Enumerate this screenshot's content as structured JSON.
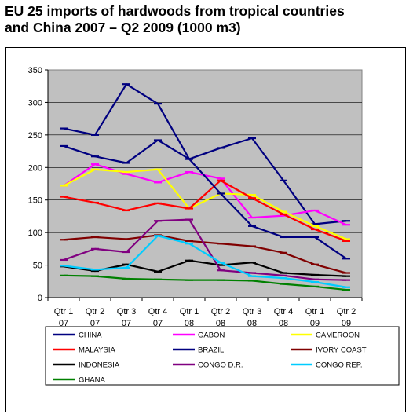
{
  "title": {
    "line1": "EU 25 imports of hardwoods from tropical countries",
    "line2": "and China 2007 – Q2 2009 (1000 m3)"
  },
  "chart_data": {
    "type": "line",
    "title": "EU 25 imports of hardwoods from tropical countries and China 2007 – Q2 2009 (1000 m3)",
    "categories": [
      [
        "Qtr 1",
        "07"
      ],
      [
        "Qtr 2",
        "07"
      ],
      [
        "Qtr 3",
        "07"
      ],
      [
        "Qtr 4",
        "07"
      ],
      [
        "Qtr 1",
        "08"
      ],
      [
        "Qtr 2",
        "08"
      ],
      [
        "Qtr 3",
        "08"
      ],
      [
        "Qtr 4",
        "08"
      ],
      [
        "Qtr 1",
        "09"
      ],
      [
        "Qtr 2",
        "09"
      ]
    ],
    "ylim": [
      0,
      350
    ],
    "yticks": [
      "0",
      "50",
      "100",
      "150",
      "200",
      "250",
      "300",
      "350"
    ],
    "grid": "horizontal",
    "plot_background": "#c0c0c0",
    "legend_position": "bottom",
    "series": [
      {
        "name": "CHINA",
        "color": "#000080",
        "values": [
          233,
          217,
          207,
          242,
          213,
          230,
          245,
          180,
          113,
          118
        ]
      },
      {
        "name": "GABON",
        "color": "#ff00ff",
        "values": [
          172,
          205,
          190,
          177,
          193,
          183,
          123,
          126,
          134,
          112
        ]
      },
      {
        "name": "CAMEROON",
        "color": "#ffff00",
        "values": [
          172,
          197,
          193,
          197,
          137,
          160,
          158,
          132,
          110,
          90
        ]
      },
      {
        "name": "MALAYSIA",
        "color": "#ff0000",
        "values": [
          155,
          146,
          134,
          145,
          137,
          180,
          153,
          128,
          105,
          87
        ]
      },
      {
        "name": "BRAZIL",
        "color": "#000080",
        "values": [
          260,
          250,
          328,
          298,
          213,
          160,
          110,
          93,
          93,
          60
        ]
      },
      {
        "name": "IVORY COAST",
        "color": "#800000",
        "values": [
          89,
          93,
          90,
          96,
          87,
          83,
          79,
          69,
          51,
          38
        ]
      },
      {
        "name": "INDONESIA",
        "color": "#000000",
        "values": [
          48,
          41,
          51,
          40,
          57,
          50,
          54,
          38,
          35,
          33
        ]
      },
      {
        "name": "CONGO D.R.",
        "color": "#800080",
        "values": [
          58,
          75,
          70,
          118,
          120,
          42,
          38,
          34,
          28,
          27
        ]
      },
      {
        "name": "CONGO REP.",
        "color": "#00ccff",
        "values": [
          49,
          43,
          46,
          95,
          83,
          54,
          33,
          30,
          24,
          16
        ]
      },
      {
        "name": "GHANA",
        "color": "#008000",
        "values": [
          34,
          33,
          29,
          28,
          27,
          27,
          26,
          21,
          17,
          12
        ]
      }
    ]
  }
}
